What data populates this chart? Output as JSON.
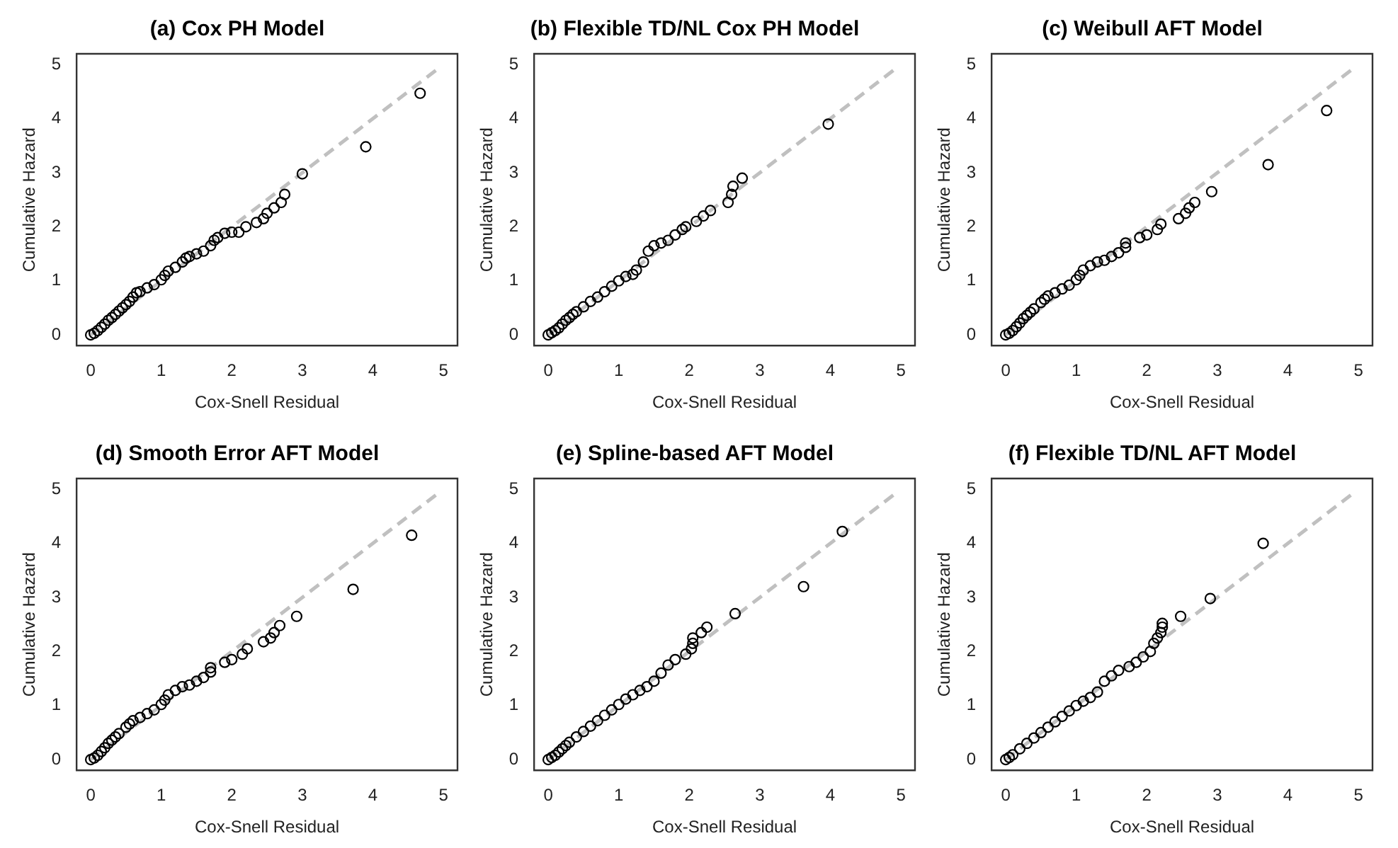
{
  "chart_data": [
    {
      "type": "scatter",
      "title": "(a) Cox PH Model",
      "xlabel": "Cox-Snell Residual",
      "ylabel": "Cumulative Hazard",
      "xlim": [
        -0.2,
        5.2
      ],
      "ylim": [
        -0.2,
        5.2
      ],
      "xticks": [
        0,
        1,
        2,
        3,
        4,
        5
      ],
      "yticks": [
        0,
        1,
        2,
        3,
        4,
        5
      ],
      "marker": "circle",
      "series": [
        {
          "type": "scatter",
          "color": "#000000",
          "x": [
            0,
            0.05,
            0.1,
            0.15,
            0.2,
            0.25,
            0.3,
            0.35,
            0.4,
            0.45,
            0.5,
            0.55,
            0.6,
            0.65,
            0.7,
            0.8,
            0.9,
            1.0,
            1.05,
            1.1,
            1.2,
            1.3,
            1.35,
            1.4,
            1.5,
            1.6,
            1.7,
            1.75,
            1.8,
            1.9,
            2.0,
            2.1,
            2.2,
            2.35,
            2.45,
            2.5,
            2.6,
            2.7,
            2.75,
            3.0,
            3.9,
            4.67
          ],
          "values": [
            0,
            0.03,
            0.08,
            0.14,
            0.2,
            0.27,
            0.32,
            0.38,
            0.44,
            0.5,
            0.56,
            0.62,
            0.7,
            0.78,
            0.8,
            0.87,
            0.93,
            1.02,
            1.1,
            1.18,
            1.25,
            1.35,
            1.42,
            1.45,
            1.5,
            1.55,
            1.65,
            1.75,
            1.8,
            1.88,
            1.9,
            1.9,
            2.0,
            2.08,
            2.15,
            2.25,
            2.35,
            2.45,
            2.6,
            2.98,
            3.48,
            4.47
          ]
        },
        {
          "type": "line",
          "color": "#c0c0c0",
          "line_style": "dashed",
          "marker": "none",
          "x": [
            0,
            4.9
          ],
          "values": [
            0,
            4.9
          ]
        }
      ]
    },
    {
      "type": "scatter",
      "title": "(b) Flexible TD/NL Cox PH Model",
      "xlabel": "Cox-Snell Residual",
      "ylabel": "Cumulative Hazard",
      "xlim": [
        -0.2,
        5.2
      ],
      "ylim": [
        -0.2,
        5.2
      ],
      "xticks": [
        0,
        1,
        2,
        3,
        4,
        5
      ],
      "yticks": [
        0,
        1,
        2,
        3,
        4,
        5
      ],
      "marker": "circle",
      "series": [
        {
          "type": "scatter",
          "color": "#000000",
          "x": [
            0,
            0.05,
            0.1,
            0.15,
            0.2,
            0.25,
            0.3,
            0.35,
            0.4,
            0.5,
            0.6,
            0.7,
            0.8,
            0.9,
            1.0,
            1.1,
            1.2,
            1.25,
            1.35,
            1.42,
            1.5,
            1.6,
            1.7,
            1.8,
            1.9,
            1.95,
            2.1,
            2.2,
            2.3,
            2.55,
            2.6,
            2.62,
            2.75,
            3.97
          ],
          "values": [
            0,
            0.04,
            0.08,
            0.13,
            0.2,
            0.27,
            0.32,
            0.38,
            0.43,
            0.52,
            0.62,
            0.7,
            0.8,
            0.9,
            1.0,
            1.08,
            1.12,
            1.2,
            1.35,
            1.55,
            1.65,
            1.7,
            1.75,
            1.85,
            1.95,
            2.0,
            2.1,
            2.2,
            2.3,
            2.45,
            2.6,
            2.75,
            2.9,
            3.9
          ]
        },
        {
          "type": "line",
          "color": "#c0c0c0",
          "line_style": "dashed",
          "marker": "none",
          "x": [
            0,
            4.9
          ],
          "values": [
            0,
            4.9
          ]
        }
      ]
    },
    {
      "type": "scatter",
      "title": "(c) Weibull AFT Model",
      "xlabel": "Cox-Snell Residual",
      "ylabel": "Cumulative Hazard",
      "xlim": [
        -0.2,
        5.2
      ],
      "ylim": [
        -0.2,
        5.2
      ],
      "xticks": [
        0,
        1,
        2,
        3,
        4,
        5
      ],
      "yticks": [
        0,
        1,
        2,
        3,
        4,
        5
      ],
      "marker": "circle",
      "series": [
        {
          "type": "scatter",
          "color": "#000000",
          "x": [
            0,
            0.05,
            0.1,
            0.15,
            0.2,
            0.25,
            0.3,
            0.35,
            0.4,
            0.5,
            0.55,
            0.6,
            0.7,
            0.8,
            0.9,
            1.0,
            1.05,
            1.1,
            1.2,
            1.3,
            1.4,
            1.5,
            1.6,
            1.7,
            1.7,
            1.9,
            2.0,
            2.15,
            2.2,
            2.45,
            2.55,
            2.6,
            2.68,
            2.92,
            3.72,
            4.55
          ],
          "values": [
            0,
            0.03,
            0.08,
            0.15,
            0.22,
            0.3,
            0.36,
            0.42,
            0.48,
            0.6,
            0.66,
            0.72,
            0.78,
            0.85,
            0.92,
            1.02,
            1.1,
            1.2,
            1.28,
            1.35,
            1.38,
            1.45,
            1.52,
            1.62,
            1.7,
            1.8,
            1.85,
            1.95,
            2.05,
            2.15,
            2.25,
            2.35,
            2.45,
            2.65,
            3.15,
            4.15
          ]
        },
        {
          "type": "line",
          "color": "#c0c0c0",
          "line_style": "dashed",
          "marker": "none",
          "x": [
            0,
            4.9
          ],
          "values": [
            0,
            4.9
          ]
        }
      ]
    },
    {
      "type": "scatter",
      "title": "(d) Smooth Error AFT Model",
      "xlabel": "Cox-Snell Residual",
      "ylabel": "Cumulative Hazard",
      "xlim": [
        -0.2,
        5.2
      ],
      "ylim": [
        -0.2,
        5.2
      ],
      "xticks": [
        0,
        1,
        2,
        3,
        4,
        5
      ],
      "yticks": [
        0,
        1,
        2,
        3,
        4,
        5
      ],
      "marker": "circle",
      "series": [
        {
          "type": "scatter",
          "color": "#000000",
          "x": [
            0,
            0.05,
            0.1,
            0.15,
            0.2,
            0.25,
            0.3,
            0.35,
            0.4,
            0.5,
            0.55,
            0.6,
            0.7,
            0.8,
            0.9,
            1.0,
            1.05,
            1.1,
            1.2,
            1.3,
            1.4,
            1.5,
            1.6,
            1.7,
            1.7,
            1.9,
            2.0,
            2.15,
            2.22,
            2.45,
            2.55,
            2.6,
            2.68,
            2.92,
            3.72,
            4.55
          ],
          "values": [
            0,
            0.03,
            0.08,
            0.15,
            0.22,
            0.3,
            0.36,
            0.42,
            0.48,
            0.6,
            0.66,
            0.72,
            0.78,
            0.85,
            0.92,
            1.02,
            1.1,
            1.2,
            1.28,
            1.35,
            1.38,
            1.45,
            1.52,
            1.62,
            1.7,
            1.8,
            1.85,
            1.95,
            2.05,
            2.18,
            2.25,
            2.35,
            2.48,
            2.65,
            3.15,
            4.15
          ]
        },
        {
          "type": "line",
          "color": "#c0c0c0",
          "line_style": "dashed",
          "marker": "none",
          "x": [
            0,
            4.9
          ],
          "values": [
            0,
            4.9
          ]
        }
      ]
    },
    {
      "type": "scatter",
      "title": "(e) Spline-based AFT Model",
      "xlabel": "Cox-Snell Residual",
      "ylabel": "Cumulative Hazard",
      "xlim": [
        -0.2,
        5.2
      ],
      "ylim": [
        -0.2,
        5.2
      ],
      "xticks": [
        0,
        1,
        2,
        3,
        4,
        5
      ],
      "yticks": [
        0,
        1,
        2,
        3,
        4,
        5
      ],
      "marker": "circle",
      "series": [
        {
          "type": "scatter",
          "color": "#000000",
          "x": [
            0,
            0.05,
            0.1,
            0.15,
            0.2,
            0.25,
            0.3,
            0.4,
            0.5,
            0.6,
            0.7,
            0.8,
            0.9,
            1.0,
            1.1,
            1.2,
            1.3,
            1.4,
            1.5,
            1.6,
            1.7,
            1.8,
            1.95,
            2.03,
            2.05,
            2.05,
            2.17,
            2.25,
            2.65,
            3.62,
            4.17
          ],
          "values": [
            0,
            0.04,
            0.08,
            0.14,
            0.2,
            0.26,
            0.32,
            0.42,
            0.52,
            0.62,
            0.72,
            0.82,
            0.92,
            1.02,
            1.12,
            1.2,
            1.28,
            1.35,
            1.45,
            1.6,
            1.75,
            1.85,
            1.95,
            2.05,
            2.15,
            2.25,
            2.35,
            2.45,
            2.7,
            3.2,
            4.22
          ]
        },
        {
          "type": "line",
          "color": "#c0c0c0",
          "line_style": "dashed",
          "marker": "none",
          "x": [
            0,
            4.9
          ],
          "values": [
            0,
            4.9
          ]
        }
      ]
    },
    {
      "type": "scatter",
      "title": "(f) Flexible TD/NL AFT Model",
      "xlabel": "Cox-Snell Residual",
      "ylabel": "Cumulative Hazard",
      "xlim": [
        -0.2,
        5.2
      ],
      "ylim": [
        -0.2,
        5.2
      ],
      "xticks": [
        0,
        1,
        2,
        3,
        4,
        5
      ],
      "yticks": [
        0,
        1,
        2,
        3,
        4,
        5
      ],
      "marker": "circle",
      "series": [
        {
          "type": "scatter",
          "color": "#000000",
          "x": [
            0,
            0.05,
            0.1,
            0.2,
            0.3,
            0.4,
            0.5,
            0.6,
            0.7,
            0.8,
            0.9,
            1.0,
            1.1,
            1.2,
            1.3,
            1.4,
            1.5,
            1.6,
            1.75,
            1.85,
            1.95,
            2.05,
            2.1,
            2.15,
            2.2,
            2.22,
            2.22,
            2.48,
            2.9,
            3.65
          ],
          "values": [
            0,
            0.04,
            0.09,
            0.2,
            0.3,
            0.4,
            0.5,
            0.6,
            0.7,
            0.8,
            0.9,
            1.0,
            1.08,
            1.15,
            1.25,
            1.45,
            1.55,
            1.65,
            1.72,
            1.8,
            1.9,
            2.0,
            2.15,
            2.25,
            2.35,
            2.45,
            2.52,
            2.65,
            2.98,
            4.0
          ]
        },
        {
          "type": "line",
          "color": "#c0c0c0",
          "line_style": "dashed",
          "marker": "none",
          "x": [
            0,
            4.9
          ],
          "values": [
            0,
            4.9
          ]
        }
      ]
    }
  ]
}
